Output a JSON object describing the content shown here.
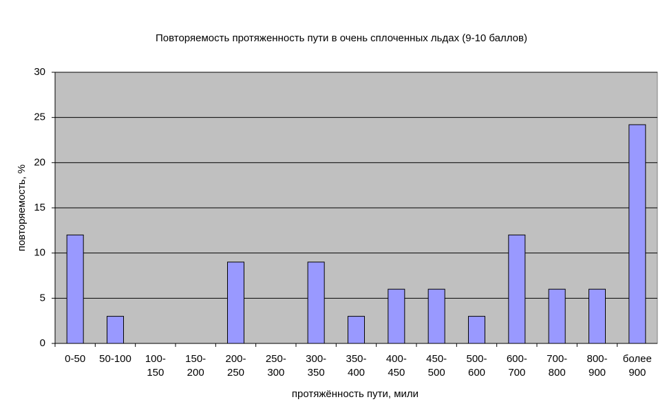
{
  "chart_data": {
    "type": "bar",
    "title": "Повторяемость протяженность пути в очень сплоченных льдах (9-10 баллов)",
    "x_label": "протяжённость пути, мили",
    "y_label": "повторяемость, %",
    "categories": [
      "0-50",
      "50-100",
      "100-150",
      "150-200",
      "200-250",
      "250-300",
      "300-350",
      "350-400",
      "400-450",
      "450-500",
      "500-600",
      "600-700",
      "700-800",
      "800-900",
      "более 900"
    ],
    "values": [
      12,
      3,
      0,
      0,
      9,
      0,
      9,
      3,
      6,
      6,
      3,
      12,
      6,
      6,
      24.2
    ],
    "color": "#9999ff",
    "ylim": [
      0,
      30
    ],
    "yticks": [
      0,
      5,
      10,
      15,
      20,
      25,
      30
    ],
    "grid": true
  }
}
